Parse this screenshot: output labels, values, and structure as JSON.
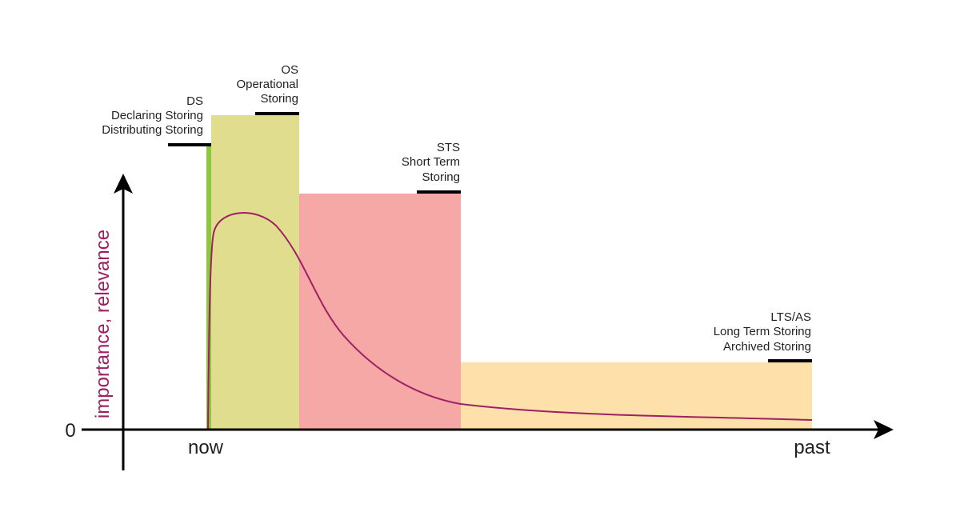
{
  "colors": {
    "ds": "#8dc63f",
    "os": "#e0de8e",
    "sts": "#f6a8a6",
    "lts": "#fde0aa",
    "curve": "#9e1f63",
    "axis": "#000000",
    "text": "#231f20"
  },
  "axes": {
    "y_label": "importance, relevance",
    "zero_label": "0",
    "x_start_label": "now",
    "x_end_label": "past"
  },
  "stages": [
    {
      "id": "ds",
      "lines": [
        "DS",
        "Declaring Storing",
        "Distributing Storing"
      ]
    },
    {
      "id": "os",
      "lines": [
        "OS",
        "Operational",
        "Storing"
      ]
    },
    {
      "id": "sts",
      "lines": [
        "STS",
        "Short Term",
        "Storing"
      ]
    },
    {
      "id": "lts",
      "lines": [
        "LTS/AS",
        "Long Term Storing",
        "Archived Storing"
      ]
    }
  ]
}
